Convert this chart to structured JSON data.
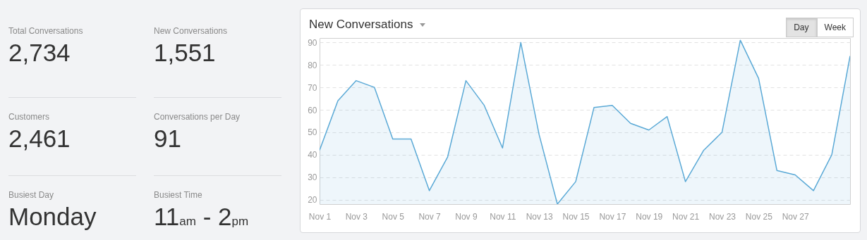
{
  "chart_data": [
    {
      "type": "other",
      "annotations": [
        "Total Conversations",
        "2,734",
        "New Conversations",
        "1,551",
        "Customers",
        "2,461",
        "Conversations per Day",
        "91",
        "Busiest Day",
        "Monday",
        "Busiest Time",
        "11$_{am}$ - 2$_{pm}$"
      ]
    },
    {
      "type": "area",
      "title": "New Conversations",
      "annotations": [
        "Day",
        "Week"
      ],
      "x": [
        "--11-01",
        "--11-02",
        "--11-03",
        "--11-04",
        "--11-05",
        "--11-06",
        "--11-07",
        "--11-08",
        "--11-09",
        "--11-10",
        "--11-11",
        "--11-12",
        "--11-13",
        "--11-14",
        "--11-15",
        "--11-16",
        "--11-17",
        "--11-18",
        "--11-19",
        "--11-20",
        "--11-21",
        "--11-22",
        "--11-23",
        "--11-24",
        "--11-25",
        "--11-26",
        "--11-27",
        "--11-28",
        "--11-29",
        "--11-30"
      ],
      "series": [
        {
          "color": "#5aa9d6",
          "values": [
            42,
            64,
            73,
            70,
            47,
            47,
            24,
            39,
            73,
            62,
            43,
            90,
            49,
            18,
            28,
            61,
            62,
            54,
            51,
            57,
            28,
            42,
            50,
            91,
            74,
            33,
            31,
            24,
            40,
            84
          ]
        }
      ],
      "xlim": [
        "--11-01",
        "--11-30"
      ],
      "xticks": [
        {
          "value": "--11-01",
          "label": "Nov 1"
        },
        {
          "value": "--11-03",
          "label": "Nov 3"
        },
        {
          "value": "--11-05",
          "label": "Nov 5"
        },
        {
          "value": "--11-07",
          "label": "Nov 7"
        },
        {
          "value": "--11-09",
          "label": "Nov 9"
        },
        {
          "value": "--11-11",
          "label": "Nov 11"
        },
        {
          "value": "--11-13",
          "label": "Nov 13"
        },
        {
          "value": "--11-15",
          "label": "Nov 15"
        },
        {
          "value": "--11-17",
          "label": "Nov 17"
        },
        {
          "value": "--11-19",
          "label": "Nov 19"
        },
        {
          "value": "--11-21",
          "label": "Nov 21"
        },
        {
          "value": "--11-23",
          "label": "Nov 23"
        },
        {
          "value": "--11-25",
          "label": "Nov 25"
        },
        {
          "value": "--11-27",
          "label": "Nov 27"
        }
      ],
      "ylim": [
        18,
        92
      ],
      "yticks": [
        20,
        30,
        40,
        50,
        60,
        70,
        80,
        90
      ],
      "grid": "y",
      "legend": false
    }
  ]
}
